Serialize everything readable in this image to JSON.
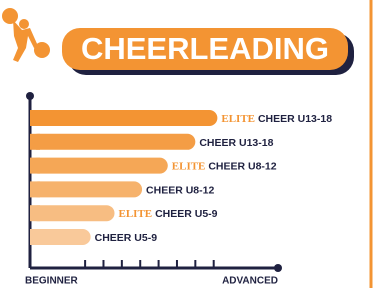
{
  "title": "CHEERLEADING",
  "chart_data": {
    "type": "bar",
    "orientation": "horizontal",
    "categories": [
      "CHEER U13-18",
      "CHEER U13-18",
      "CHEER U8-12",
      "CHEER U8-12",
      "CHEER U5-9",
      "CHEER U5-9"
    ],
    "prefixes": [
      "ELITE",
      null,
      "ELITE",
      null,
      "ELITE",
      null
    ],
    "values": [
      10.2,
      9,
      7.5,
      6.1,
      4.6,
      3.3
    ],
    "colors": [
      "#f39433",
      "#f49d45",
      "#f5a756",
      "#f6b26c",
      "#f7bd82",
      "#f9c99a"
    ],
    "xlim": [
      0,
      13.5
    ],
    "xticks": [
      3,
      4,
      5,
      6,
      7,
      8,
      9,
      10
    ],
    "x_min_label": "BEGINNER",
    "x_max_label": "ADVANCED"
  }
}
